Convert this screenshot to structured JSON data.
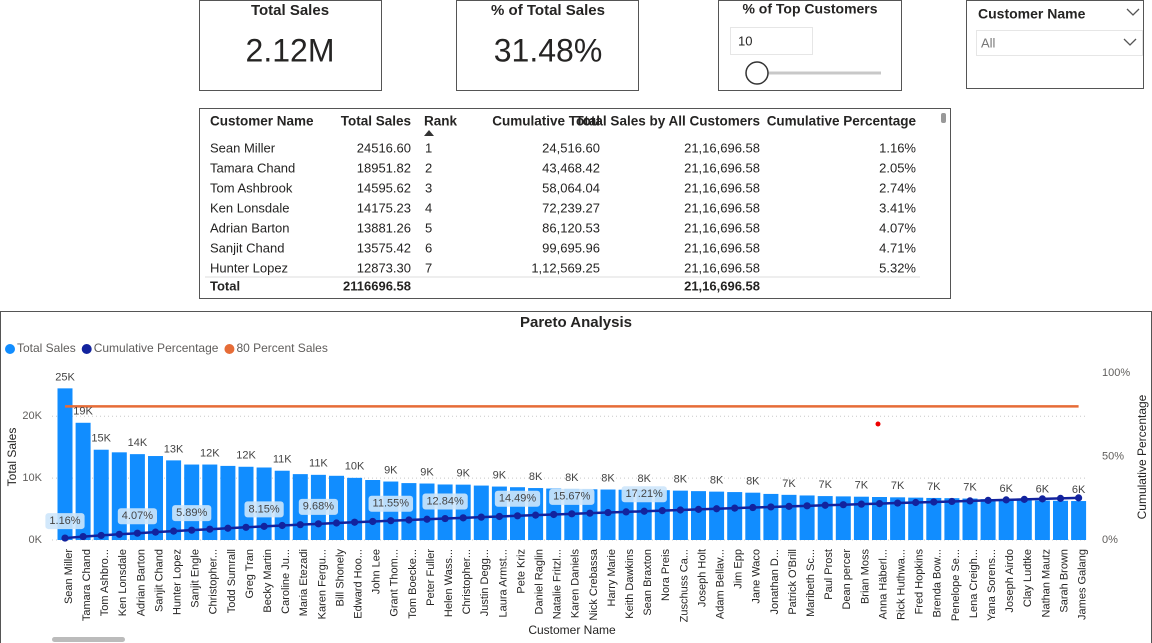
{
  "cards": [
    {
      "title": "Total Sales",
      "value": "2.12M"
    },
    {
      "title": "% of Total Sales",
      "value": "31.48%"
    }
  ],
  "slicers": {
    "top_customers": {
      "title": "% of Top Customers",
      "value": "10"
    },
    "customer_name": {
      "title": "Customer Name",
      "value": "All"
    }
  },
  "table": {
    "columns": [
      "Customer Name",
      "Total Sales",
      "Rank",
      "Cumulative Total",
      "Total Sales by All Customers",
      "Cumulative Percentage"
    ],
    "rows": [
      [
        "Sean Miller",
        "24516.60",
        "1",
        "24,516.60",
        "21,16,696.58",
        "1.16%"
      ],
      [
        "Tamara Chand",
        "18951.82",
        "2",
        "43,468.42",
        "21,16,696.58",
        "2.05%"
      ],
      [
        "Tom Ashbrook",
        "14595.62",
        "3",
        "58,064.04",
        "21,16,696.58",
        "2.74%"
      ],
      [
        "Ken Lonsdale",
        "14175.23",
        "4",
        "72,239.27",
        "21,16,696.58",
        "3.41%"
      ],
      [
        "Adrian Barton",
        "13881.26",
        "5",
        "86,120.53",
        "21,16,696.58",
        "4.07%"
      ],
      [
        "Sanjit Chand",
        "13575.42",
        "6",
        "99,695.96",
        "21,16,696.58",
        "4.71%"
      ],
      [
        "Hunter Lopez",
        "12873.30",
        "7",
        "1,12,569.25",
        "21,16,696.58",
        "5.32%"
      ]
    ],
    "total": {
      "label": "Total",
      "total_sales": "2116696.58",
      "total_sales_by_all": "21,16,696.58"
    }
  },
  "chart_data": {
    "type": "combo",
    "title": "Pareto Analysis",
    "x_label": "Customer Name",
    "y_label": "Total Sales",
    "y2_label": "Cumulative Percentage",
    "categories": [
      "Sean Miller",
      "Tamara Chand",
      "Tom Ashbro...",
      "Ken Lonsdale",
      "Adrian Barton",
      "Sanjit Chand",
      "Hunter Lopez",
      "Sanjit Engle",
      "Christopher...",
      "Todd Sumrall",
      "Greg Tran",
      "Becky Martin",
      "Caroline Ju...",
      "Maria Etezadi",
      "Karen Fergu...",
      "Bill Shonely",
      "Edward Hoo...",
      "John Lee",
      "Grant Thom...",
      "Tom Boecke...",
      "Peter Fuller",
      "Helen Wass...",
      "Christopher...",
      "Justin Degg...",
      "Laura Armst...",
      "Pete Kriz",
      "Daniel Raglin",
      "Natalie Fritzl...",
      "Karen Daniels",
      "Nick Crebassa",
      "Harry Marie",
      "Keith Dawkins",
      "Sean Braxton",
      "Nora Preis",
      "Zuschuss Ca...",
      "Joseph Holt",
      "Adam Bellav...",
      "Jim Epp",
      "Jane Waco",
      "Jonathan D...",
      "Patrick O'Brill",
      "Maribeth Sc...",
      "Paul Prost",
      "Dean percer",
      "Brian Moss",
      "Anna Häberl...",
      "Rick Huthwa...",
      "Fred Hopkins",
      "Brenda Bow...",
      "Penelope Se...",
      "Lena Creigh...",
      "Yana Sorens...",
      "Joseph Airdo",
      "Clay Ludtke",
      "Nathan Mautz",
      "Sarah Brown",
      "James Galang"
    ],
    "series": [
      {
        "name": "Total Sales",
        "color": "#118dff",
        "kind": "bar",
        "values": [
          24516.6,
          18951.82,
          14595.62,
          14175.23,
          13881.26,
          13575.42,
          12873.3,
          12200,
          12200,
          11980,
          11840,
          11722,
          11200,
          10650,
          10535,
          10380,
          10050,
          9700,
          9452,
          9200,
          9130,
          8976,
          8950,
          8800,
          8640,
          8535,
          8400,
          8320,
          8257,
          8200,
          8160,
          8130,
          8100,
          8050,
          7980,
          7900,
          7820,
          7750,
          7650,
          7450,
          7300,
          7200,
          7100,
          7050,
          7000,
          6950,
          6900,
          6850,
          6800,
          6760,
          6700,
          6600,
          6480,
          6420,
          6380,
          6340,
          6300
        ],
        "value_labels": [
          "25K",
          "19K",
          "15K",
          null,
          "14K",
          null,
          "13K",
          null,
          "12K",
          null,
          "12K",
          null,
          "11K",
          null,
          "11K",
          null,
          "10K",
          null,
          "9K",
          null,
          "9K",
          null,
          "9K",
          null,
          "9K",
          null,
          "8K",
          null,
          "8K",
          null,
          "8K",
          null,
          "8K",
          null,
          "8K",
          null,
          "8K",
          null,
          "8K",
          null,
          "7K",
          null,
          "7K",
          null,
          "7K",
          null,
          "7K",
          null,
          "7K",
          null,
          "7K",
          null,
          "6K",
          null,
          "6K",
          null,
          "6K"
        ]
      },
      {
        "name": "Cumulative Percentage",
        "color": "#12239e",
        "kind": "line-dots",
        "axis": "y2",
        "values": [
          1.16,
          2.05,
          2.74,
          3.41,
          4.07,
          4.71,
          5.32,
          5.89,
          6.47,
          7.04,
          7.6,
          8.15,
          8.68,
          9.18,
          9.68,
          10.17,
          10.65,
          11.1,
          11.55,
          11.98,
          12.42,
          12.84,
          13.26,
          13.68,
          14.09,
          14.49,
          14.89,
          15.28,
          15.67,
          16.06,
          16.44,
          16.83,
          17.21,
          17.59,
          17.97,
          18.34,
          18.71,
          19.08,
          19.44,
          19.79,
          20.13,
          20.47,
          20.81,
          21.14,
          21.47,
          21.8,
          22.13,
          22.45,
          22.77,
          23.09,
          23.41,
          23.72,
          24.03,
          24.33,
          24.63,
          24.93,
          25.23
        ],
        "value_labels": [
          "1.16%",
          null,
          null,
          null,
          "4.07%",
          null,
          null,
          "5.89%",
          null,
          null,
          null,
          "8.15%",
          null,
          null,
          "9.68%",
          null,
          null,
          null,
          "11.55%",
          null,
          null,
          "12.84%",
          null,
          null,
          null,
          "14.49%",
          null,
          null,
          "15.67%",
          null,
          null,
          null,
          "17.21%",
          null,
          null,
          null,
          null,
          null,
          null,
          null,
          null,
          null,
          null,
          null,
          null,
          null,
          null,
          null,
          null,
          null,
          null,
          null,
          null,
          null,
          null,
          null,
          null
        ]
      },
      {
        "name": "80 Percent Sales",
        "color": "#e66c37",
        "kind": "line",
        "axis": "y2",
        "values": [
          80,
          80,
          80,
          80,
          80,
          80,
          80,
          80,
          80,
          80,
          80,
          80,
          80,
          80,
          80,
          80,
          80,
          80,
          80,
          80,
          80,
          80,
          80,
          80,
          80,
          80,
          80,
          80,
          80,
          80,
          80,
          80,
          80,
          80,
          80,
          80,
          80,
          80,
          80,
          80,
          80,
          80,
          80,
          80,
          80,
          80,
          80,
          80,
          80,
          80,
          80,
          80,
          80,
          80,
          80,
          80,
          80
        ]
      }
    ],
    "ylim": [
      0,
      27000
    ],
    "yticks": [
      {
        "value": 0,
        "label": "0K"
      },
      {
        "value": 10000,
        "label": "10K"
      },
      {
        "value": 20000,
        "label": "20K"
      }
    ],
    "y2lim": [
      0,
      100
    ],
    "y2ticks": [
      {
        "value": 0,
        "label": "0%"
      },
      {
        "value": 50,
        "label": "50%"
      },
      {
        "value": 100,
        "label": "100%"
      }
    ],
    "grid": true,
    "legend": "top-left"
  }
}
